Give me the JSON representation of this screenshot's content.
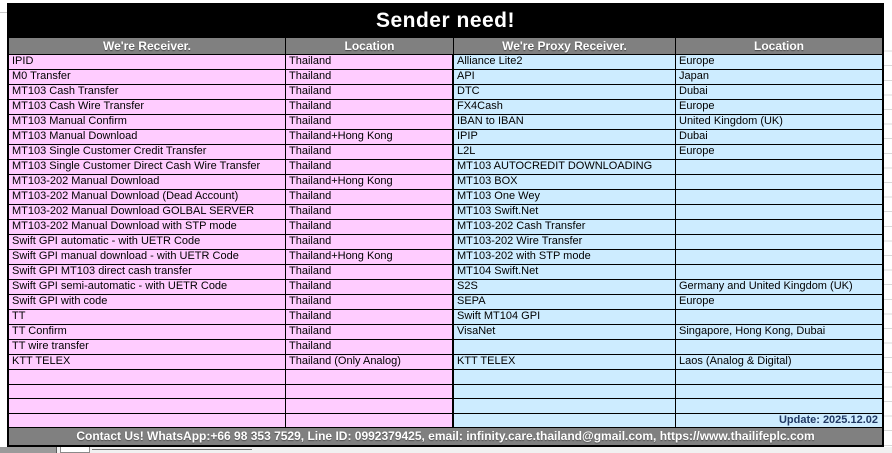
{
  "title": "Sender need!",
  "table": {
    "columns": [
      "We're Receiver.",
      "Location",
      "We're Proxy Receiver.",
      "Location"
    ],
    "rows": [
      {
        "receiver": "IPID",
        "receiver_location": "Thailand",
        "proxy": "Alliance Lite2",
        "proxy_location": "Europe"
      },
      {
        "receiver": "M0 Transfer",
        "receiver_location": "Thailand",
        "proxy": "API",
        "proxy_location": "Japan"
      },
      {
        "receiver": "MT103 Cash Transfer",
        "receiver_location": "Thailand",
        "proxy": "DTC",
        "proxy_location": "Dubai"
      },
      {
        "receiver": "MT103 Cash Wire Transfer",
        "receiver_location": "Thailand",
        "proxy": "FX4Cash",
        "proxy_location": "Europe"
      },
      {
        "receiver": "MT103 Manual Confirm",
        "receiver_location": "Thailand",
        "proxy": "IBAN to IBAN",
        "proxy_location": "United Kingdom (UK)"
      },
      {
        "receiver": "MT103 Manual Download",
        "receiver_location": "Thailand+Hong Kong",
        "proxy": "IPIP",
        "proxy_location": "Dubai"
      },
      {
        "receiver": "MT103 Single Customer Credit Transfer",
        "receiver_location": "Thailand",
        "proxy": "L2L",
        "proxy_location": "Europe"
      },
      {
        "receiver": "MT103 Single Customer Direct Cash Wire Transfer",
        "receiver_location": "Thailand",
        "proxy": "MT103 AUTOCREDIT DOWNLOADING",
        "proxy_location": ""
      },
      {
        "receiver": "MT103-202 Manual Download",
        "receiver_location": "Thailand+Hong Kong",
        "proxy": "MT103 BOX",
        "proxy_location": ""
      },
      {
        "receiver": "MT103-202 Manual Download (Dead Account)",
        "receiver_location": "Thailand",
        "proxy": "MT103 One Wey",
        "proxy_location": ""
      },
      {
        "receiver": "MT103-202 Manual Download GOLBAL SERVER",
        "receiver_location": "Thailand",
        "proxy": "MT103 Swift.Net",
        "proxy_location": ""
      },
      {
        "receiver": "MT103-202 Manual Download with STP mode",
        "receiver_location": "Thailand",
        "proxy": "MT103-202 Cash Transfer",
        "proxy_location": ""
      },
      {
        "receiver": "Swift GPI automatic - with UETR Code",
        "receiver_location": "Thailand",
        "proxy": "MT103-202 Wire Transfer",
        "proxy_location": ""
      },
      {
        "receiver": "Swift GPI manual download - with UETR Code",
        "receiver_location": "Thailand+Hong Kong",
        "proxy": "MT103-202 with STP mode",
        "proxy_location": ""
      },
      {
        "receiver": "Swift GPI MT103 direct cash transfer",
        "receiver_location": "Thailand",
        "proxy": "MT104 Swift.Net",
        "proxy_location": ""
      },
      {
        "receiver": "Swift GPI semi-automatic - with UETR Code",
        "receiver_location": "Thailand",
        "proxy": "S2S",
        "proxy_location": "Germany and United Kingdom (UK)"
      },
      {
        "receiver": "Swift GPI with code",
        "receiver_location": "Thailand",
        "proxy": "SEPA",
        "proxy_location": "Europe"
      },
      {
        "receiver": "TT",
        "receiver_location": "Thailand",
        "proxy": "Swift MT104 GPI",
        "proxy_location": ""
      },
      {
        "receiver": "TT Confirm",
        "receiver_location": "Thailand",
        "proxy": "VisaNet",
        "proxy_location": "Singapore, Hong Kong, Dubai"
      },
      {
        "receiver": "TT wire transfer",
        "receiver_location": "Thailand",
        "proxy": "",
        "proxy_location": ""
      },
      {
        "receiver": "KTT TELEX",
        "receiver_location": "Thailand (Only Analog)",
        "proxy": "KTT TELEX",
        "proxy_location": "Laos (Analog & Digital)"
      }
    ],
    "trailing_empty_rows": 4,
    "update_note": "Update: 2025.12.02"
  },
  "footer": {
    "contact_line": "Contact Us! WhatsApp:+66 98 353 7529, Line ID: 0992379425, email: infinity.care.thailand@gmail.com,  https://www.thailifeplc.com"
  },
  "colors": {
    "title_bg": "#000000",
    "header_bg": "#808080",
    "pink": "#FFCCFF",
    "blue": "#CDECFF",
    "footer_bg": "#808080",
    "update_color": "#203864",
    "border": "#000000"
  }
}
